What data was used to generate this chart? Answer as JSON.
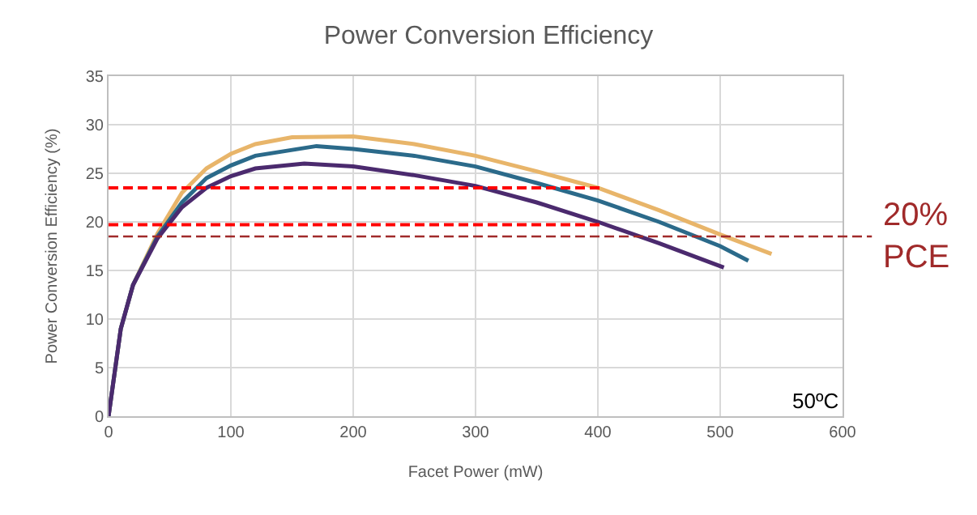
{
  "chart_data": {
    "type": "line",
    "title": "Power Conversion Efficiency",
    "xlabel": "Facet Power (mW)",
    "ylabel": "Power Conversion Efficiency (%)",
    "xlim": [
      0,
      600
    ],
    "xticks": [
      0,
      100,
      200,
      300,
      400,
      500,
      600
    ],
    "ylim": [
      0,
      35
    ],
    "yticks": [
      0,
      5,
      10,
      15,
      20,
      25,
      30,
      35
    ],
    "grid": true,
    "marker": "none",
    "series": [
      {
        "color": "#e8b56a",
        "x": [
          0,
          10,
          20,
          40,
          60,
          80,
          100,
          120,
          150,
          200,
          250,
          300,
          350,
          400,
          450,
          500,
          542
        ],
        "values": [
          0,
          9,
          13.5,
          18.8,
          23,
          25.5,
          27,
          28,
          28.7,
          28.8,
          28,
          26.8,
          25.2,
          23.5,
          21.2,
          18.7,
          16.7
        ]
      },
      {
        "color": "#2b6a8a",
        "x": [
          0,
          10,
          20,
          40,
          60,
          80,
          100,
          120,
          170,
          200,
          250,
          300,
          350,
          400,
          450,
          500,
          523
        ],
        "values": [
          0,
          9,
          13.5,
          18.5,
          22,
          24.5,
          25.8,
          26.8,
          27.8,
          27.5,
          26.8,
          25.7,
          24,
          22.2,
          20,
          17.5,
          16
        ]
      },
      {
        "color": "#4b2a6e",
        "x": [
          0,
          10,
          20,
          40,
          60,
          80,
          100,
          120,
          160,
          200,
          250,
          300,
          350,
          400,
          450,
          503
        ],
        "values": [
          0,
          9,
          13.5,
          18.3,
          21.5,
          23.5,
          24.7,
          25.5,
          26,
          25.7,
          24.8,
          23.7,
          22,
          20,
          17.8,
          15.3
        ]
      },
      {
        "color": "#ff0000",
        "line_style": "dashed",
        "x": [
          0,
          405
        ],
        "values": [
          23.5,
          23.5
        ]
      },
      {
        "color": "#ff0000",
        "line_style": "dashed",
        "x": [
          0,
          405
        ],
        "values": [
          19.7,
          19.7
        ]
      }
    ],
    "ref_lines": [
      {
        "axis": "y",
        "value": 18.5,
        "label": "20%\nPCE",
        "color": "#a02a2a",
        "line_style": "dashed"
      }
    ],
    "annotations": [
      "50ºC"
    ]
  }
}
